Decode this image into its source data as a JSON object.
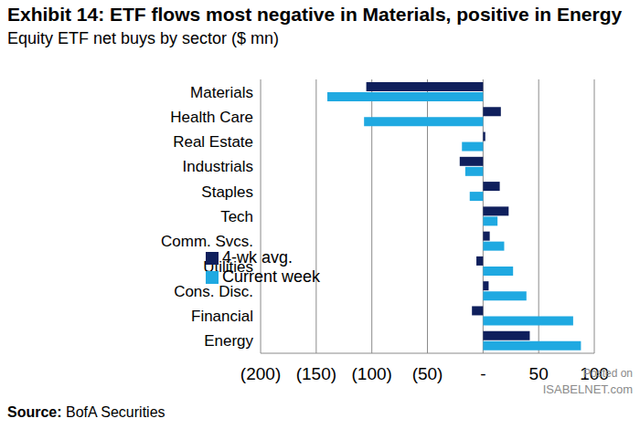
{
  "chart_data": {
    "type": "bar",
    "orientation": "horizontal",
    "title": "Exhibit 14: ETF flows most negative in Materials, positive in Energy",
    "subtitle": "Equity ETF net buys by sector ($ mn)",
    "source": "Source: BofA Securities",
    "annotations": [
      "Posted on",
      "ISABELNET.com"
    ],
    "categories": [
      "Materials",
      "Health Care",
      "Real Estate",
      "Industrials",
      "Staples",
      "Tech",
      "Comm. Svcs.",
      "Utilities",
      "Cons. Disc.",
      "Financial",
      "Energy"
    ],
    "series": [
      {
        "name": "4-wk avg.",
        "color": "#0f1f5c",
        "values": [
          -105,
          16,
          2,
          -21,
          15,
          23,
          6,
          -6,
          5,
          -10,
          42
        ]
      },
      {
        "name": "Current week",
        "color": "#1fa9e1",
        "values": [
          -140,
          -107,
          -19,
          -16,
          -12,
          13,
          19,
          27,
          39,
          81,
          88
        ]
      }
    ],
    "xlim": [
      -200,
      100
    ],
    "xticks": [
      {
        "value": -200,
        "label": "(200)"
      },
      {
        "value": -150,
        "label": "(150)"
      },
      {
        "value": -100,
        "label": "(100)"
      },
      {
        "value": -50,
        "label": "(50)"
      },
      {
        "value": 0,
        "label": "-"
      },
      50,
      100
    ],
    "grid": true,
    "legend": "lower left"
  }
}
